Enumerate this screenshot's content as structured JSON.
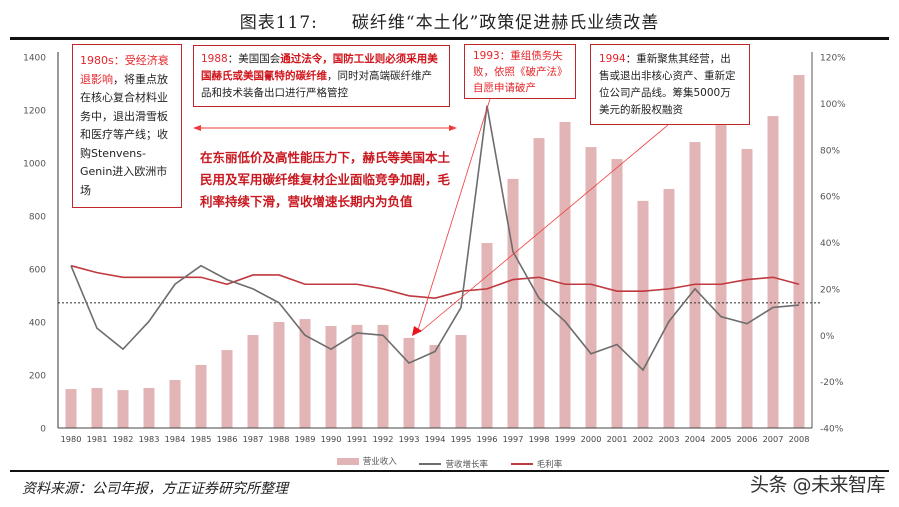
{
  "header": {
    "figure_number": "图表117:",
    "title": "碳纤维“本土化”政策促进赫氏业绩改善"
  },
  "footer": {
    "source": "资料来源：公司年报，方正证券研究所整理",
    "watermark": "头条 @未来智库"
  },
  "annotations": {
    "a1980s": {
      "year_label": "1980s：受经济衰退影响",
      "text": "，将重点放在核心复合材料业务中，退出滑雪板和医疗等产线；收购Stenvens-Genin进入欧洲市场"
    },
    "a1988": {
      "year_label": "1988",
      "text_pre": "：美国国会",
      "highlight": "通过法令，国防工业则必须采用美国赫氏或美国氰特的碳纤维",
      "text_post": "，同时对高端碳纤维产品和技术装备出口进行严格管控"
    },
    "a1993": {
      "text": "1993：重组债务失败，依照《破产法》自愿申请破产"
    },
    "a1994": {
      "year_label": "1994",
      "text": "：重新聚焦其经营，出售或退出非核心资产、重新定位公司产品线。筹集5000万美元的新股权融资"
    },
    "period_note": "在东丽低价及高性能压力下，赫氏等美国本土民用及军用碳纤维复材企业面临竞争加剧，毛利率持续下滑，营收增速长期内为负值"
  },
  "legend": {
    "revenue": "营业收入",
    "growth": "营收增长率",
    "margin": "毛利率"
  },
  "colors": {
    "bar": "#e2b4b5",
    "growth_line": "#6d6d6d",
    "margin_line": "#c0393f",
    "annotation_border": "#c0272d",
    "arrow": "#f03a3a"
  },
  "chart_data": {
    "type": "bar",
    "title": "碳纤维“本土化”政策促进赫氏业绩改善",
    "categories": [
      "1980",
      "1981",
      "1982",
      "1983",
      "1984",
      "1985",
      "1986",
      "1987",
      "1988",
      "1989",
      "1990",
      "1991",
      "1992",
      "1993",
      "1994",
      "1995",
      "1996",
      "1997",
      "1998",
      "1999",
      "2000",
      "2001",
      "2002",
      "2003",
      "2004",
      "2005",
      "2006",
      "2007",
      "2008"
    ],
    "series": [
      {
        "name": "营业收入",
        "type": "bar",
        "axis": "left",
        "values": [
          147,
          151,
          143,
          151,
          181,
          238,
          294,
          351,
          400,
          411,
          385,
          389,
          389,
          340,
          313,
          351,
          698,
          940,
          1094,
          1155,
          1060,
          1015,
          857,
          902,
          1079,
          1143,
          1053,
          1177,
          1332
        ]
      },
      {
        "name": "营收增长率",
        "type": "line",
        "axis": "right",
        "unit": "%",
        "values": [
          30,
          3,
          -6,
          6,
          22,
          30,
          24,
          20,
          14,
          0,
          -6,
          1,
          0,
          -12,
          -7,
          12,
          99,
          36,
          16,
          6,
          -8,
          -4,
          -15,
          6,
          20,
          8,
          5,
          12,
          13
        ]
      },
      {
        "name": "毛利率",
        "type": "line",
        "axis": "right",
        "unit": "%",
        "values": [
          30,
          27,
          25,
          25,
          25,
          25,
          22,
          26,
          26,
          22,
          22,
          22,
          20,
          17,
          16,
          19,
          20,
          24,
          25,
          22,
          22,
          19,
          19,
          20,
          22,
          22,
          24,
          25,
          22
        ]
      }
    ],
    "reference_line": {
      "axis": "right",
      "value": 14,
      "style": "dotted"
    },
    "left_axis": {
      "ylim": [
        0,
        1400
      ],
      "ticks": [
        "0",
        "200",
        "400",
        "600",
        "800",
        "1000",
        "1200",
        "1400"
      ]
    },
    "right_axis": {
      "ylim": [
        -40,
        120
      ],
      "ticks": [
        "-40%",
        "-20%",
        "0%",
        "20%",
        "40%",
        "60%",
        "80%",
        "100%",
        "120%"
      ]
    },
    "xlabel": "",
    "ylabel": "",
    "grid": false,
    "legend_position": "bottom"
  }
}
